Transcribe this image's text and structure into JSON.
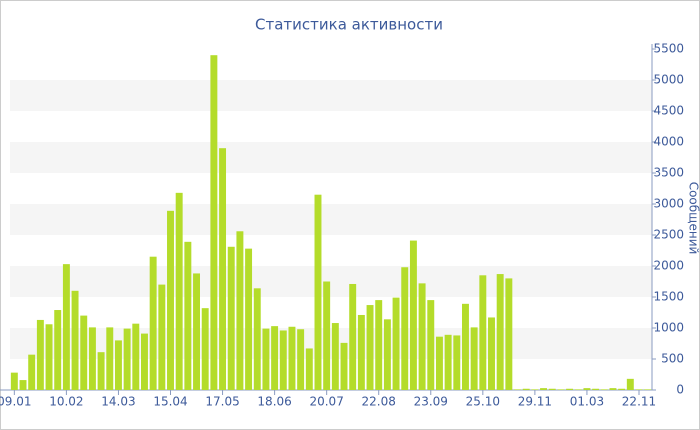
{
  "chart_data": {
    "type": "bar",
    "title": "Статистика активности",
    "y_axis_label": "Сообщений",
    "y_axis_side": "right",
    "categories": [
      "09.01",
      null,
      null,
      null,
      null,
      null,
      "10.02",
      null,
      null,
      null,
      null,
      null,
      "14.03",
      null,
      null,
      null,
      null,
      null,
      "15.04",
      null,
      null,
      null,
      null,
      null,
      "17.05",
      null,
      null,
      null,
      null,
      null,
      "18.06",
      null,
      null,
      null,
      null,
      null,
      "20.07",
      null,
      null,
      null,
      null,
      null,
      "22.08",
      null,
      null,
      null,
      null,
      null,
      "23.09",
      null,
      null,
      null,
      null,
      null,
      "25.10",
      null,
      null,
      null,
      null,
      null,
      "29.11",
      null,
      null,
      null,
      null,
      null,
      "01.03",
      null,
      null,
      null,
      null,
      null,
      "22.11",
      null
    ],
    "values": [
      280,
      160,
      570,
      1130,
      1060,
      1290,
      2030,
      1600,
      1200,
      1010,
      610,
      1010,
      800,
      990,
      1070,
      910,
      2150,
      1700,
      2890,
      3180,
      2390,
      1880,
      1320,
      5400,
      3900,
      2310,
      2560,
      2280,
      1640,
      990,
      1030,
      960,
      1020,
      980,
      670,
      3150,
      1750,
      1080,
      760,
      1710,
      1210,
      1370,
      1450,
      1140,
      1490,
      1980,
      2410,
      1720,
      1450,
      860,
      890,
      880,
      1390,
      1010,
      1850,
      1170,
      1870,
      1800,
      10,
      20,
      10,
      30,
      20,
      10,
      20,
      10,
      30,
      20,
      10,
      30,
      20,
      180,
      10,
      10
    ],
    "color": "#b4dc2a",
    "ylim": [
      0,
      5500
    ],
    "yticks": [
      0,
      500,
      1000,
      1500,
      2000,
      2500,
      3000,
      3500,
      4000,
      4500,
      5000,
      5500
    ],
    "bands": true
  }
}
